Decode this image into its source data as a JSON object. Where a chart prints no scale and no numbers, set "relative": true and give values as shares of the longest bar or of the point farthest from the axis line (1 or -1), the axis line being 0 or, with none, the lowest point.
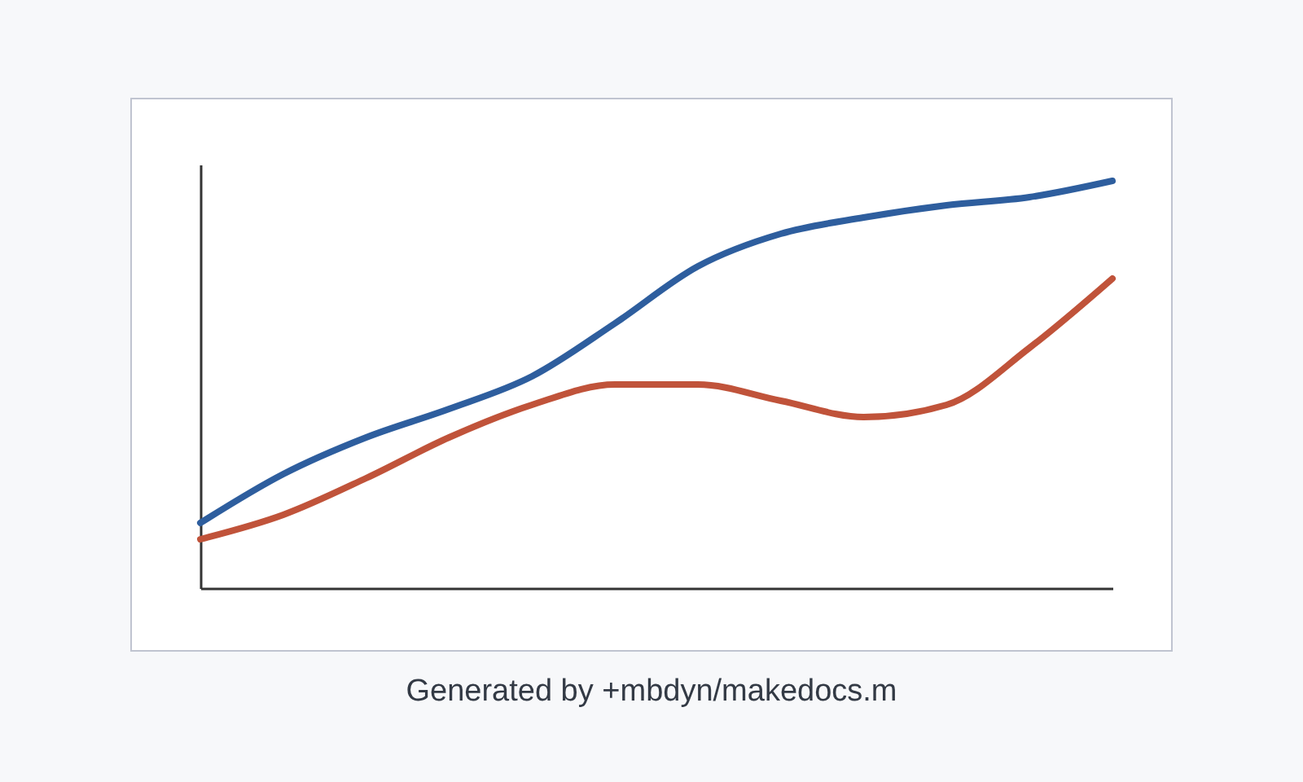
{
  "chart_data": {
    "type": "line",
    "relative": true,
    "categories": [
      null,
      null,
      null,
      null,
      null,
      null,
      null,
      null,
      null,
      null,
      null,
      null
    ],
    "series": [
      {
        "color": "#2e5e9e",
        "values": [
          0.16,
          0.28,
          0.37,
          0.44,
          0.52,
          0.65,
          0.79,
          0.87,
          0.91,
          0.94,
          0.96,
          1.0
        ]
      },
      {
        "color": "#c0533a",
        "values": [
          0.12,
          0.18,
          0.27,
          0.37,
          0.45,
          0.5,
          0.5,
          0.46,
          0.42,
          0.45,
          0.59,
          0.76
        ]
      }
    ],
    "annotations": [
      "Generated by +mbdyn/makedocs.m"
    ]
  }
}
